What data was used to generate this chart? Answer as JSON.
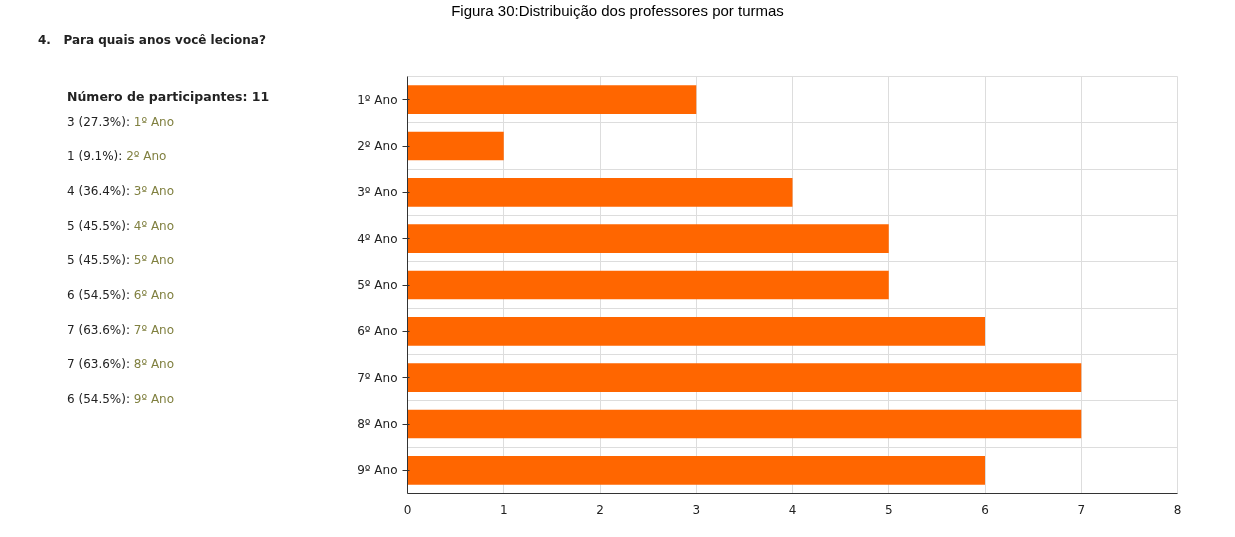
{
  "chart_data": {
    "type": "bar",
    "orientation": "horizontal",
    "title": "Figura 30:Distribuição dos professores por turmas",
    "subtitle": "4.   Para quais anos você leciona?",
    "annotations": [
      "Número de participantes: 11",
      "3 (27.3%): 1º Ano",
      "1 (9.1%): 2º Ano",
      "4 (36.4%): 3º Ano",
      "5 (45.5%): 4º Ano",
      "5 (45.5%): 5º Ano",
      "6 (54.5%): 6º Ano",
      "7 (63.6%): 7º Ano",
      "7 (63.6%): 8º Ano",
      "6 (54.5%): 9º Ano"
    ],
    "categories": [
      "1º Ano",
      "2º Ano",
      "3º Ano",
      "4º Ano",
      "5º Ano",
      "6º Ano",
      "7º Ano",
      "8º Ano",
      "9º Ano"
    ],
    "values": [
      3,
      1,
      4,
      5,
      5,
      6,
      7,
      7,
      6
    ],
    "color": "#ff6600",
    "xlim": [
      0,
      8
    ],
    "xticks": [
      0,
      1,
      2,
      3,
      4,
      5,
      6,
      7,
      8
    ],
    "grid": true
  }
}
